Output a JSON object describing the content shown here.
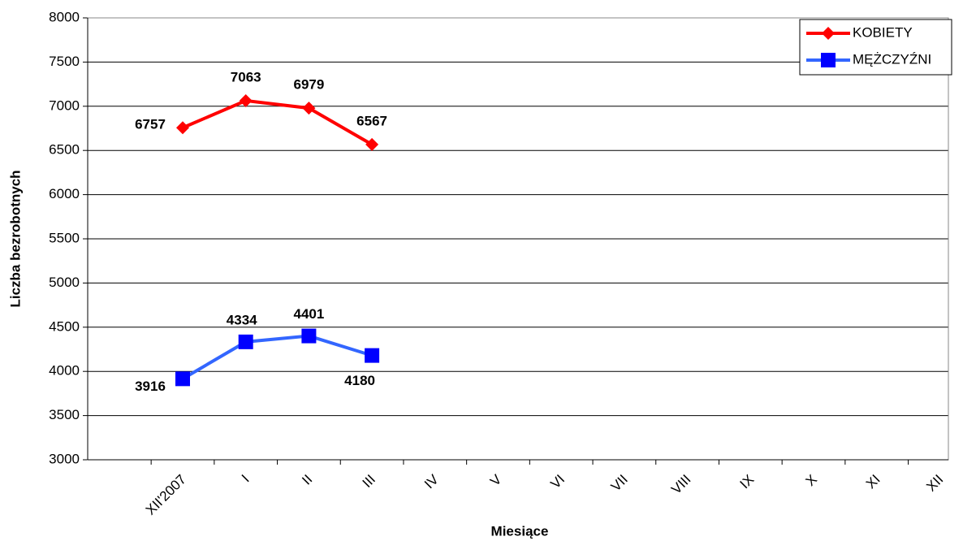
{
  "chart_data": {
    "type": "line",
    "x_label": "Miesiące",
    "y_label": "Liczba bezrobotnych",
    "categories": [
      "XII'2007",
      "I",
      "II",
      "III",
      "IV",
      "V",
      "VI",
      "VII",
      "VIII",
      "IX",
      "X",
      "XI",
      "XII"
    ],
    "series": [
      {
        "name": "KOBIETY",
        "color": "#ff0000",
        "marker": "diamond",
        "values": [
          6757,
          7063,
          6979,
          6567,
          null,
          null,
          null,
          null,
          null,
          null,
          null,
          null,
          null
        ]
      },
      {
        "name": "MĘŻCZYŹNI",
        "color": "#3366ff",
        "marker_color": "#0000ff",
        "marker": "square",
        "values": [
          3916,
          4334,
          4401,
          4180,
          null,
          null,
          null,
          null,
          null,
          null,
          null,
          null,
          null
        ]
      }
    ],
    "ylim": [
      3000,
      8000
    ],
    "yticks": [
      3000,
      3500,
      4000,
      4500,
      5000,
      5500,
      6000,
      6500,
      7000,
      7500,
      8000
    ],
    "grid": true,
    "legend": "top-right"
  }
}
